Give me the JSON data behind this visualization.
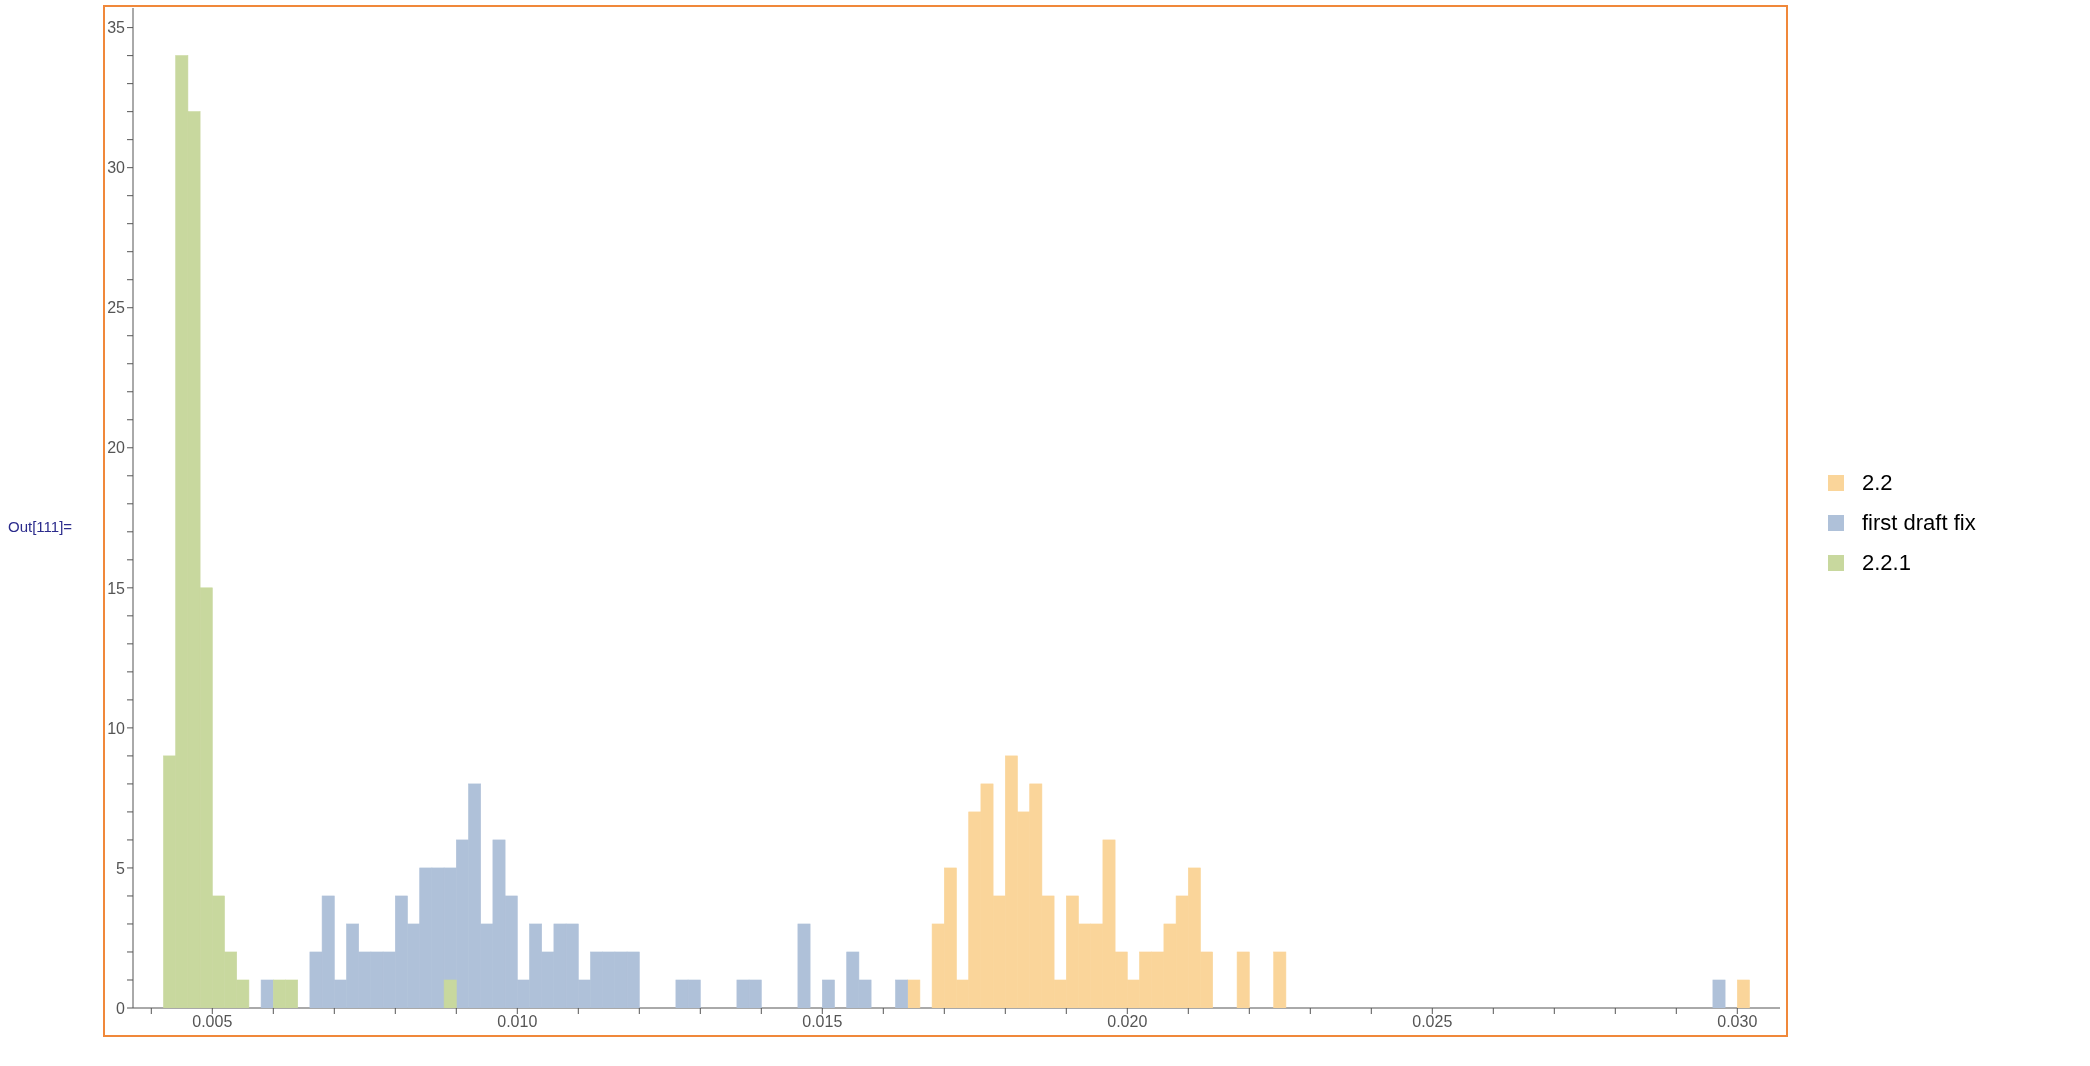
{
  "chart_data": {
    "type": "histogram",
    "annotations": [
      "Out[111]="
    ],
    "xlim": [
      0.0037,
      0.0307
    ],
    "ylim": [
      0,
      35.7
    ],
    "xticks": [
      {
        "value": 0.004,
        "label": null
      },
      0.005,
      {
        "value": 0.006,
        "label": null
      },
      {
        "value": 0.007,
        "label": null
      },
      {
        "value": 0.008,
        "label": null
      },
      {
        "value": 0.009,
        "label": null
      },
      {
        "value": 0.01,
        "label": "0.010"
      },
      {
        "value": 0.011,
        "label": null
      },
      {
        "value": 0.012,
        "label": null
      },
      {
        "value": 0.013,
        "label": null
      },
      {
        "value": 0.014,
        "label": null
      },
      0.015,
      {
        "value": 0.016,
        "label": null
      },
      {
        "value": 0.017,
        "label": null
      },
      {
        "value": 0.018,
        "label": null
      },
      {
        "value": 0.019,
        "label": null
      },
      {
        "value": 0.02,
        "label": "0.020"
      },
      {
        "value": 0.021,
        "label": null
      },
      {
        "value": 0.022,
        "label": null
      },
      {
        "value": 0.023,
        "label": null
      },
      {
        "value": 0.024,
        "label": null
      },
      0.025,
      {
        "value": 0.026,
        "label": null
      },
      {
        "value": 0.027,
        "label": null
      },
      {
        "value": 0.028,
        "label": null
      },
      {
        "value": 0.029,
        "label": null
      },
      {
        "value": 0.03,
        "label": "0.030"
      }
    ],
    "yticks": [
      0,
      {
        "value": 1,
        "label": null
      },
      {
        "value": 2,
        "label": null
      },
      {
        "value": 3,
        "label": null
      },
      {
        "value": 4,
        "label": null
      },
      5,
      {
        "value": 6,
        "label": null
      },
      {
        "value": 7,
        "label": null
      },
      {
        "value": 8,
        "label": null
      },
      {
        "value": 9,
        "label": null
      },
      10,
      {
        "value": 11,
        "label": null
      },
      {
        "value": 12,
        "label": null
      },
      {
        "value": 13,
        "label": null
      },
      {
        "value": 14,
        "label": null
      },
      15,
      {
        "value": 16,
        "label": null
      },
      {
        "value": 17,
        "label": null
      },
      {
        "value": 18,
        "label": null
      },
      {
        "value": 19,
        "label": null
      },
      20,
      {
        "value": 21,
        "label": null
      },
      {
        "value": 22,
        "label": null
      },
      {
        "value": 23,
        "label": null
      },
      {
        "value": 24,
        "label": null
      },
      25,
      {
        "value": 26,
        "label": null
      },
      {
        "value": 27,
        "label": null
      },
      {
        "value": 28,
        "label": null
      },
      {
        "value": 29,
        "label": null
      },
      30,
      {
        "value": 31,
        "label": null
      },
      {
        "value": 32,
        "label": null
      },
      {
        "value": 33,
        "label": null
      },
      {
        "value": 34,
        "label": null
      },
      35
    ],
    "grid": false,
    "legend": "right",
    "bins": [
      0.0042,
      0.0044,
      0.0046,
      0.0048,
      0.005,
      0.0052,
      0.0054,
      0.0056,
      0.0058,
      0.006,
      0.0062,
      0.0064,
      0.0066,
      0.0068,
      0.007,
      0.0072,
      0.0074,
      0.0076,
      0.0078,
      0.008,
      0.0082,
      0.0084,
      0.0086,
      0.0088,
      0.009,
      0.0092,
      0.0094,
      0.0096,
      0.0098,
      0.01,
      0.0102,
      0.0104,
      0.0106,
      0.0108,
      0.011,
      0.0112,
      0.0114,
      0.0116,
      0.0118,
      0.012,
      0.0122,
      0.0124,
      0.0126,
      0.0128,
      0.013,
      0.0132,
      0.0134,
      0.0136,
      0.0138,
      0.014,
      0.0142,
      0.0144,
      0.0146,
      0.0148,
      0.015,
      0.0152,
      0.0154,
      0.0156,
      0.0158,
      0.016,
      0.0162,
      0.0164,
      0.0166,
      0.0168,
      0.017,
      0.0172,
      0.0174,
      0.0176,
      0.0178,
      0.018,
      0.0182,
      0.0184,
      0.0186,
      0.0188,
      0.019,
      0.0192,
      0.0194,
      0.0196,
      0.0198,
      0.02,
      0.0202,
      0.0204,
      0.0206,
      0.0208,
      0.021,
      0.0212,
      0.0214,
      0.0216,
      0.0218,
      0.022,
      0.0222,
      0.0224,
      0.0226,
      0.0228,
      0.023,
      0.0232,
      0.0234,
      0.0236,
      0.0238,
      0.024,
      0.0242,
      0.0244,
      0.0246,
      0.0248,
      0.025,
      0.0252,
      0.0254,
      0.0256,
      0.0258,
      0.026,
      0.0262,
      0.0264,
      0.0266,
      0.0268,
      0.027,
      0.0272,
      0.0274,
      0.0276,
      0.0278,
      0.028,
      0.0282,
      0.0284,
      0.0286,
      0.0288,
      0.029,
      0.0292,
      0.0294,
      0.0296,
      0.0298,
      0.03,
      0.0302
    ],
    "series": [
      {
        "name": "2.2",
        "color": "#fad59a",
        "values": [
          0,
          0,
          0,
          0,
          0,
          0,
          0,
          0,
          0,
          0,
          0,
          0,
          0,
          0,
          0,
          0,
          0,
          0,
          0,
          0,
          0,
          0,
          0,
          0,
          0,
          0,
          0,
          0,
          0,
          0,
          0,
          0,
          0,
          0,
          0,
          0,
          0,
          0,
          0,
          0,
          0,
          0,
          0,
          0,
          0,
          0,
          0,
          0,
          0,
          0,
          0,
          0,
          0,
          0,
          0,
          0,
          0,
          0,
          0,
          0,
          0,
          1,
          0,
          3,
          5,
          1,
          7,
          8,
          4,
          9,
          7,
          8,
          4,
          1,
          4,
          3,
          3,
          6,
          2,
          1,
          2,
          2,
          3,
          4,
          5,
          2,
          0,
          0,
          2,
          0,
          0,
          2,
          0,
          0,
          0,
          0,
          0,
          0,
          0,
          0,
          0,
          0,
          0,
          0,
          0,
          0,
          0,
          0,
          0,
          0,
          0,
          0,
          0,
          0,
          0,
          0,
          0,
          0,
          0,
          0,
          0,
          0,
          0,
          0,
          0,
          0,
          0,
          0,
          0,
          1
        ]
      },
      {
        "name": "first draft fix",
        "color": "#afc1d9",
        "values": [
          0,
          0,
          0,
          0,
          0,
          0,
          0,
          0,
          1,
          0,
          0,
          0,
          2,
          4,
          1,
          3,
          2,
          2,
          2,
          4,
          3,
          5,
          5,
          5,
          6,
          8,
          3,
          6,
          4,
          1,
          3,
          2,
          3,
          3,
          1,
          2,
          2,
          2,
          2,
          0,
          0,
          0,
          1,
          1,
          0,
          0,
          0,
          1,
          1,
          0,
          0,
          0,
          3,
          0,
          1,
          0,
          2,
          1,
          0,
          0,
          1,
          0,
          0,
          0,
          0,
          0,
          0,
          0,
          0,
          0,
          0,
          0,
          0,
          0,
          0,
          0,
          0,
          0,
          0,
          0,
          0,
          0,
          0,
          0,
          0,
          0,
          0,
          0,
          0,
          0,
          0,
          0,
          0,
          0,
          0,
          0,
          0,
          0,
          0,
          0,
          0,
          0,
          0,
          0,
          0,
          0,
          0,
          0,
          0,
          0,
          0,
          0,
          0,
          0,
          0,
          0,
          0,
          0,
          0,
          0,
          0,
          0,
          0,
          0,
          0,
          0,
          0,
          1,
          0,
          0
        ]
      },
      {
        "name": "2.2.1",
        "color": "#c8d89e",
        "values": [
          9,
          34,
          32,
          15,
          4,
          2,
          1,
          0,
          0,
          1,
          1,
          0,
          0,
          0,
          0,
          0,
          0,
          0,
          0,
          0,
          0,
          0,
          0,
          1,
          0,
          0,
          0,
          0,
          0,
          0,
          0,
          0,
          0,
          0,
          0,
          0,
          0,
          0,
          0,
          0,
          0,
          0,
          0,
          0,
          0,
          0,
          0,
          0,
          0,
          0,
          0,
          0,
          0,
          0,
          0,
          0,
          0,
          0,
          0,
          0,
          0,
          0,
          0,
          0,
          0,
          0,
          0,
          0,
          0,
          0,
          0,
          0,
          0,
          0,
          0,
          0,
          0,
          0,
          0,
          0,
          0,
          0,
          0,
          0,
          0,
          0,
          0,
          0,
          0,
          0,
          0,
          0,
          0,
          0,
          0,
          0,
          0,
          0,
          0,
          0,
          0,
          0,
          0,
          0,
          0,
          0,
          0,
          0,
          0,
          0,
          0,
          0,
          0,
          0,
          0,
          0,
          0,
          0,
          0,
          0,
          0,
          0,
          0,
          0,
          0,
          0,
          0,
          0,
          0,
          0
        ]
      }
    ]
  }
}
